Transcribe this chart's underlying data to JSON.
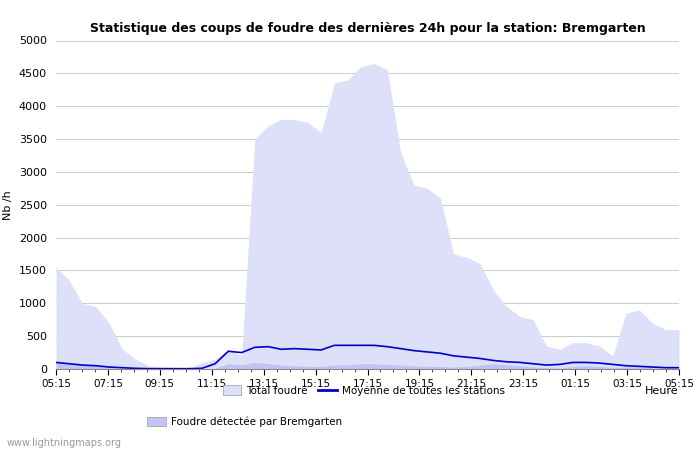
{
  "title": "Statistique des coups de foudre des dernières 24h pour la station: Bremgarten",
  "xlabel": "Heure",
  "ylabel": "Nb /h",
  "xlabels": [
    "05:15",
    "07:15",
    "09:15",
    "11:15",
    "13:15",
    "15:15",
    "17:15",
    "19:15",
    "21:15",
    "23:15",
    "01:15",
    "03:15",
    "05:15"
  ],
  "ylim": [
    0,
    5000
  ],
  "yticks": [
    0,
    500,
    1000,
    1500,
    2000,
    2500,
    3000,
    3500,
    4000,
    4500,
    5000
  ],
  "background_color": "#ffffff",
  "plot_bg_color": "#ffffff",
  "grid_color": "#cccccc",
  "watermark": "www.lightningmaps.org",
  "legend": {
    "total_foudre_label": "Total foudre",
    "total_foudre_color": "#dde0f8",
    "bremgarten_label": "Foudre détectée par Bremgarten",
    "bremgarten_color": "#c0c4f0",
    "moyenne_label": "Moyenne de toutes les stations",
    "moyenne_color": "#0000cc"
  },
  "total_foudre": [
    1550,
    1350,
    1000,
    950,
    700,
    300,
    150,
    50,
    30,
    20,
    10,
    100,
    150,
    300,
    200,
    3500,
    3700,
    3800,
    3800,
    3750,
    3600,
    4350,
    4400,
    4600,
    4650,
    4550,
    3300,
    2800,
    2750,
    2600,
    1750,
    1700,
    1600,
    1200,
    950,
    800,
    750,
    350,
    300,
    400,
    400,
    350,
    200,
    850,
    900,
    700,
    600,
    600
  ],
  "bremgarten": [
    100,
    80,
    60,
    50,
    20,
    10,
    5,
    3,
    2,
    1,
    1,
    5,
    10,
    80,
    60,
    100,
    80,
    60,
    50,
    40,
    40,
    60,
    60,
    80,
    80,
    70,
    60,
    50,
    40,
    40,
    30,
    40,
    60,
    80,
    60,
    50,
    30,
    20,
    10,
    40,
    50,
    40,
    20,
    30,
    30,
    20,
    10,
    10
  ],
  "moyenne": [
    100,
    80,
    60,
    50,
    30,
    20,
    10,
    5,
    5,
    5,
    5,
    10,
    80,
    270,
    250,
    330,
    340,
    300,
    310,
    300,
    290,
    360,
    360,
    360,
    360,
    340,
    310,
    280,
    260,
    240,
    200,
    180,
    160,
    130,
    110,
    100,
    80,
    60,
    70,
    100,
    100,
    90,
    70,
    50,
    40,
    30,
    20,
    20
  ]
}
